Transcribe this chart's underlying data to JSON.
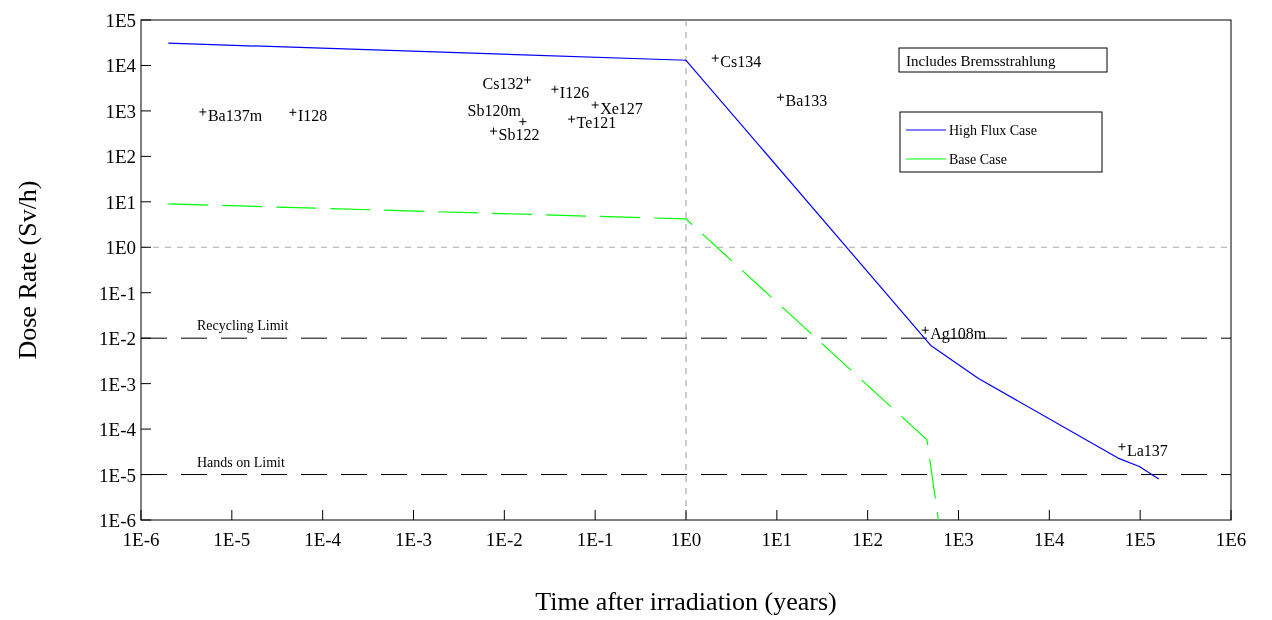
{
  "chart_data": {
    "type": "line",
    "xlabel": "Time after irradiation (years)",
    "ylabel": "Dose Rate (Sv/h)",
    "log": "xy",
    "grid": false,
    "legend": "top right",
    "marker": "none",
    "xlim": [
      1e-06,
      1000000.0
    ],
    "ylim": [
      1e-06,
      100000.0
    ],
    "xticks": [
      {
        "value": 1e-06,
        "label": "1E-6"
      },
      {
        "value": 1e-05,
        "label": "1E-5"
      },
      {
        "value": 0.0001,
        "label": "1E-4"
      },
      {
        "value": 0.001,
        "label": "1E-3"
      },
      {
        "value": 0.01,
        "label": "1E-2"
      },
      {
        "value": 0.1,
        "label": "1E-1"
      },
      {
        "value": 1,
        "label": "1E0"
      },
      {
        "value": 10,
        "label": "1E1"
      },
      {
        "value": 100,
        "label": "1E2"
      },
      {
        "value": 1000,
        "label": "1E3"
      },
      {
        "value": 10000,
        "label": "1E4"
      },
      {
        "value": 100000,
        "label": "1E5"
      },
      {
        "value": 1000000,
        "label": "1E6"
      }
    ],
    "yticks": [
      {
        "value": 1e-06,
        "label": "1E-6"
      },
      {
        "value": 1e-05,
        "label": "1E-5"
      },
      {
        "value": 0.0001,
        "label": "1E-4"
      },
      {
        "value": 0.001,
        "label": "1E-3"
      },
      {
        "value": 0.01,
        "label": "1E-2"
      },
      {
        "value": 0.1,
        "label": "1E-1"
      },
      {
        "value": 1,
        "label": "1E0"
      },
      {
        "value": 10,
        "label": "1E1"
      },
      {
        "value": 100,
        "label": "1E2"
      },
      {
        "value": 1000,
        "label": "1E3"
      },
      {
        "value": 10000,
        "label": "1E4"
      },
      {
        "value": 100000,
        "label": "1E5"
      }
    ],
    "series": [
      {
        "name": "High Flux Case",
        "color": "#0000ff",
        "line_style": "solid",
        "x": [
          2e-06,
          1,
          500,
          1660,
          57000,
          98000,
          160000
        ],
        "values": [
          31000,
          13000,
          0.0068,
          0.0013,
          2.3e-05,
          1.5e-05,
          8e-06
        ]
      },
      {
        "name": "Base Case",
        "color": "#00ff00",
        "line_style": "dashed",
        "x": [
          2e-06,
          1,
          450,
          600
        ],
        "values": [
          9,
          4.2,
          5.8e-05,
          1e-06
        ]
      },
      {
        "type": "scatter",
        "color": "#000000",
        "marker": "cross",
        "x": [
          4.8e-06,
          4.7e-05,
          0.018,
          0.036,
          0.1,
          0.016,
          0.055,
          0.0076,
          2.1,
          11,
          430,
          63000
        ],
        "values": [
          950,
          930,
          4800,
          3000,
          1350,
          580,
          660,
          360,
          14500,
          2000,
          0.015,
          4.1e-05
        ]
      }
    ],
    "ref_lines": [
      {
        "axis": "y",
        "value": 1,
        "color": "#aaaaaa",
        "line_style": "dashed"
      },
      {
        "axis": "x",
        "value": 1,
        "color": "#aaaaaa",
        "line_style": "dashed"
      },
      {
        "axis": "y",
        "value": 0.01,
        "label": "Recycling Limit",
        "color": "#000000",
        "line_style": "dashed"
      },
      {
        "axis": "y",
        "value": 1e-05,
        "label": "Hands on Limit",
        "color": "#000000",
        "line_style": "dashed"
      }
    ],
    "annotations": [
      "Includes Bremsstrahlung",
      {
        "text": "Ba137m",
        "x": 4.8e-06,
        "y": 950
      },
      {
        "text": "I128",
        "x": 4.7e-05,
        "y": 930
      },
      {
        "text": "Cs132",
        "x": 0.018,
        "y": 4800
      },
      {
        "text": "I126",
        "x": 0.036,
        "y": 3000
      },
      {
        "text": "Xe127",
        "x": 0.1,
        "y": 1350
      },
      {
        "text": "Sb120m",
        "x": 0.016,
        "y": 580
      },
      {
        "text": "Te121",
        "x": 0.055,
        "y": 660
      },
      {
        "text": "Sb122",
        "x": 0.0076,
        "y": 360
      },
      {
        "text": "Cs134",
        "x": 2.1,
        "y": 14500
      },
      {
        "text": "Ba133",
        "x": 11,
        "y": 2000
      },
      {
        "text": "Ag108m",
        "x": 430,
        "y": 0.015
      },
      {
        "text": "La137",
        "x": 63000,
        "y": 4.1e-05
      }
    ]
  }
}
